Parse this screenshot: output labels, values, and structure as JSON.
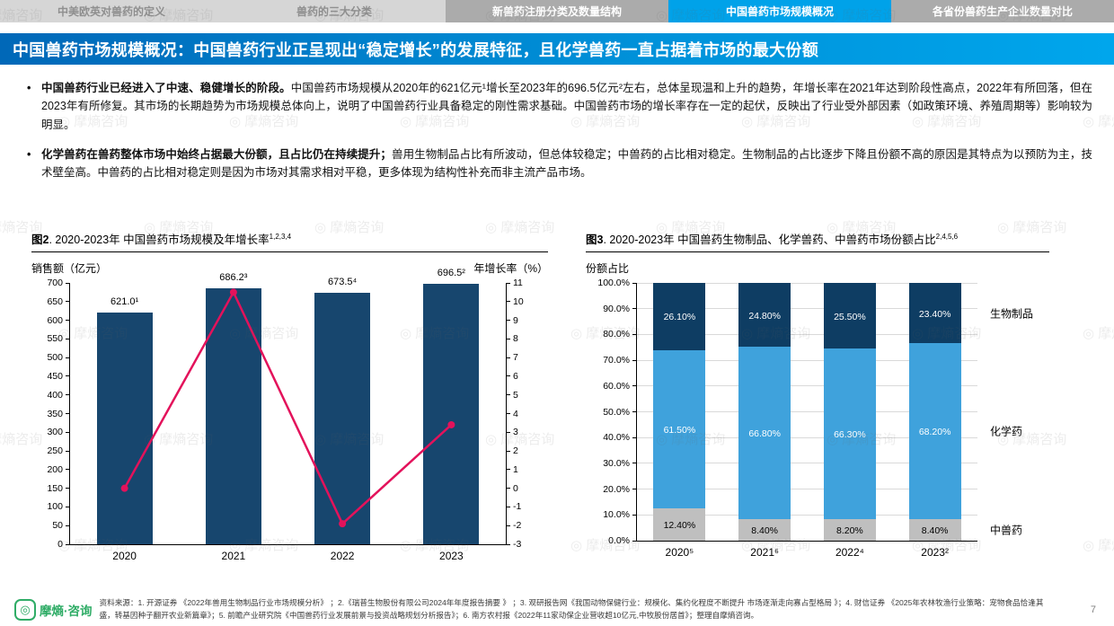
{
  "nav": {
    "tabs": [
      {
        "label": "中美欧英对兽药的定义",
        "state": "default"
      },
      {
        "label": "兽药的三大分类",
        "state": "default"
      },
      {
        "label": "新兽药注册分类及数量结构",
        "state": "shaded"
      },
      {
        "label": "中国兽药市场规模概况",
        "state": "active"
      },
      {
        "label": "各省份兽药生产企业数量对比",
        "state": "shaded"
      }
    ]
  },
  "banner": {
    "title": "中国兽药市场规模概况：中国兽药行业正呈现出“稳定增长”的发展特征，且化学兽药一直占据着市场的最大份额",
    "accent_color": "#00A2E9"
  },
  "bullets": [
    {
      "marker": "•",
      "lead": "中国兽药行业已经进入了中速、稳健增长的阶段。",
      "text": "中国兽药市场规模从2020年的621亿元¹增长至2023年的696.5亿元²左右，总体呈现温和上升的趋势，年增长率在2021年达到阶段性高点，2022年有所回落，但在2023年有所修复。其市场的长期趋势为市场规模总体向上，说明了中国兽药行业具备稳定的刚性需求基础。中国兽药市场的增长率存在一定的起伏，反映出了行业受外部因素（如政策环境、养殖周期等）影响较为明显。"
    },
    {
      "marker": "•",
      "lead": "化学兽药在兽药整体市场中始终占据最大份额，且占比仍在持续提升；",
      "text": "兽用生物制品占比有所波动，但总体较稳定；中兽药的占比相对稳定。生物制品的占比逐步下降且份额不高的原因是其特点为以预防为主，技术壁垒高。中兽药的占比相对稳定则是因为市场对其需求相对平稳，更多体现为结构性补充而非主流产品市场。"
    }
  ],
  "chart_data": [
    {
      "type": "bar+line",
      "fig_label": "图2",
      "title_rest": ". 2020-2023年 中国兽药市场规模及年增长率",
      "superscript": "1,2,3,4",
      "categories": [
        "2020",
        "2021",
        "2022",
        "2023"
      ],
      "series": [
        {
          "name": "销售额（亿元）",
          "chart": "bar",
          "axis": "left",
          "color": "#17466E",
          "values": [
            621.0,
            686.2,
            673.5,
            696.5
          ],
          "labels": [
            "621.0¹",
            "686.2³",
            "673.5⁴",
            "696.5²"
          ]
        },
        {
          "name": "年增长率（%）",
          "chart": "line",
          "axis": "right",
          "color": "#E3125B",
          "values": [
            0.0,
            10.5,
            -1.9,
            3.4
          ]
        }
      ],
      "left_axis": {
        "label": "销售额（亿元）",
        "min": 0,
        "max": 700,
        "step": 50
      },
      "right_axis": {
        "label": "年增长率（%）",
        "min": -3,
        "max": 11,
        "step": 1
      },
      "grid": false,
      "legend": "none"
    },
    {
      "type": "stacked-bar",
      "fig_label": "图3",
      "title_rest": ". 2020-2023年 中国兽药生物制品、化学兽药、中兽药市场份额占比",
      "superscript": "2,4,5,6",
      "ylabel": "份额占比",
      "categories": [
        "2020⁵",
        "2021⁶",
        "2022⁴",
        "2023²"
      ],
      "series": [
        {
          "name": "中兽药",
          "color": "#BFBFBF",
          "label_color": "#000000",
          "values": [
            12.4,
            8.4,
            8.2,
            8.4
          ]
        },
        {
          "name": "化学药",
          "color": "#3FA2DC",
          "label_color": "#FFFFFF",
          "values": [
            61.5,
            66.8,
            66.3,
            68.2
          ]
        },
        {
          "name": "生物制品",
          "color": "#0E3D63",
          "label_color": "#FFFFFF",
          "values": [
            26.1,
            24.8,
            25.5,
            23.4
          ]
        }
      ],
      "y_axis": {
        "min": 0,
        "max": 100,
        "step": 10,
        "suffix": "%"
      },
      "grid": true,
      "legend": "right-labels"
    }
  ],
  "footer": {
    "logo_primary": "摩熵",
    "logo_secondary": "·咨询",
    "sources": "资料来源：1. 开源证券 《2022年兽用生物制品行业市场规模分析》 ；2.《瑞普生物股份有限公司2024年年度报告摘要 》 ；3. 观研报告网《我国动物保健行业：规模化、集约化程度不断提升 市场逐渐走向寡占型格局 》；4. 财信证券 《2025年农林牧渔行业策略：宠物食品恰逢其盛，转基因种子翻开农业新篇章》；5. 前瞻产业研究院《中国兽药行业发展前景与投资战略规划分析报告》；6. 南方农村报《2022年11家动保企业营收超10亿元,中牧股份居首》；整理自摩熵咨询。",
    "page_number": "7"
  },
  "watermark": {
    "text": "摩熵咨询"
  }
}
